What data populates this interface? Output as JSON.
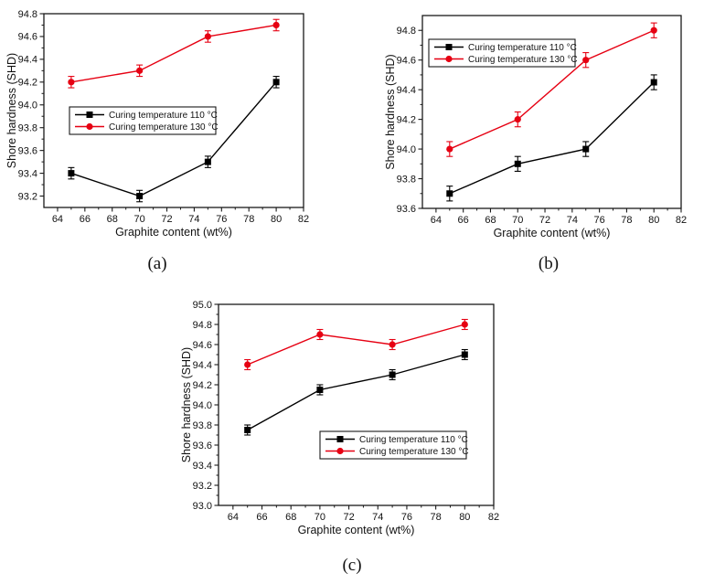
{
  "page": {
    "background": "#ffffff"
  },
  "colors": {
    "series_110": "#000000",
    "series_130": "#e60012",
    "axis": "#1a1a1a",
    "text": "#111111",
    "legend_border": "#1a1a1a",
    "legend_fill": "#ffffff"
  },
  "chart_data": [
    {
      "id": "a",
      "caption": "(a)",
      "type": "line",
      "title": "",
      "xlabel": "Graphite content (wt%)",
      "ylabel": "Shore hardness (SHD)",
      "x": [
        65,
        70,
        75,
        80
      ],
      "series": [
        {
          "name": "Curing temperature 110 °C",
          "color": "#000000",
          "marker": "square",
          "values": [
            93.4,
            93.2,
            93.5,
            94.2
          ],
          "error": 0.05
        },
        {
          "name": "Curing temperature 130 °C",
          "color": "#e60012",
          "marker": "circle",
          "values": [
            94.2,
            94.3,
            94.6,
            94.7
          ],
          "error": 0.05
        }
      ],
      "xlim": [
        63,
        82
      ],
      "ylim": [
        93.1,
        94.8
      ],
      "xticks": [
        64,
        66,
        68,
        70,
        72,
        74,
        76,
        78,
        80,
        82
      ],
      "ytick_labels": [
        "93.2",
        "93.4",
        "93.6",
        "93.8",
        "94.0",
        "94.2",
        "94.4",
        "94.6",
        "94.8"
      ],
      "minor_x_step": 1,
      "minor_y_step": 0.1,
      "grid": false,
      "legend_position": "center-left"
    },
    {
      "id": "b",
      "caption": "(b)",
      "type": "line",
      "title": "",
      "xlabel": "Graphite content (wt%)",
      "ylabel": "Shore hardness (SHD)",
      "x": [
        65,
        70,
        75,
        80
      ],
      "series": [
        {
          "name": "Curing temperature 110 °C",
          "color": "#000000",
          "marker": "square",
          "values": [
            93.7,
            93.9,
            94.0,
            94.45
          ],
          "error": 0.05
        },
        {
          "name": "Curing temperature 130 °C",
          "color": "#e60012",
          "marker": "circle",
          "values": [
            94.0,
            94.2,
            94.6,
            94.8
          ],
          "error": 0.05
        }
      ],
      "xlim": [
        63,
        82
      ],
      "ylim": [
        93.6,
        94.9
      ],
      "xticks": [
        64,
        66,
        68,
        70,
        72,
        74,
        76,
        78,
        80,
        82
      ],
      "ytick_labels": [
        "93.6",
        "93.8",
        "94.0",
        "94.2",
        "94.4",
        "94.6",
        "94.8"
      ],
      "minor_x_step": 1,
      "minor_y_step": 0.1,
      "grid": false,
      "legend_position": "top-left"
    },
    {
      "id": "c",
      "caption": "(c)",
      "type": "line",
      "title": "",
      "xlabel": "Graphite content (wt%)",
      "ylabel": "Shore hardness (SHD)",
      "x": [
        65,
        70,
        75,
        80
      ],
      "series": [
        {
          "name": "Curing temperature 110 °C",
          "color": "#000000",
          "marker": "square",
          "values": [
            93.75,
            94.15,
            94.3,
            94.5
          ],
          "error": 0.05
        },
        {
          "name": "Curing temperature 130 °C",
          "color": "#e60012",
          "marker": "circle",
          "values": [
            94.4,
            94.7,
            94.6,
            94.8
          ],
          "error": 0.05
        }
      ],
      "xlim": [
        63,
        82
      ],
      "ylim": [
        93.0,
        95.0
      ],
      "xticks": [
        64,
        66,
        68,
        70,
        72,
        74,
        76,
        78,
        80,
        82
      ],
      "ytick_labels": [
        "93.0",
        "93.2",
        "93.4",
        "93.6",
        "93.8",
        "94.0",
        "94.2",
        "94.4",
        "94.6",
        "94.8",
        "95.0"
      ],
      "minor_x_step": 1,
      "minor_y_step": 0.1,
      "grid": false,
      "legend_position": "center-right"
    }
  ]
}
